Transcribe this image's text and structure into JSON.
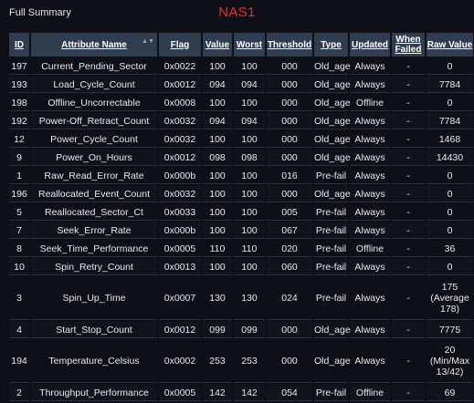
{
  "panel_label": "Full Summary",
  "title": "NAS1",
  "columns": [
    {
      "key": "id",
      "label": "ID"
    },
    {
      "key": "name",
      "label": "Attribute Name"
    },
    {
      "key": "flag",
      "label": "Flag"
    },
    {
      "key": "value",
      "label": "Value"
    },
    {
      "key": "worst",
      "label": "Worst"
    },
    {
      "key": "threshold",
      "label": "Threshold"
    },
    {
      "key": "type",
      "label": "Type"
    },
    {
      "key": "updated",
      "label": "Updated"
    },
    {
      "key": "when_failed",
      "label": "When Failed"
    },
    {
      "key": "raw",
      "label": "Raw Value"
    }
  ],
  "rows": [
    {
      "id": "197",
      "name": "Current_Pending_Sector",
      "flag": "0x0022",
      "value": "100",
      "worst": "100",
      "threshold": "000",
      "type": "Old_age",
      "updated": "Always",
      "when_failed": "-",
      "raw": "0"
    },
    {
      "id": "193",
      "name": "Load_Cycle_Count",
      "flag": "0x0012",
      "value": "094",
      "worst": "094",
      "threshold": "000",
      "type": "Old_age",
      "updated": "Always",
      "when_failed": "-",
      "raw": "7784"
    },
    {
      "id": "198",
      "name": "Offline_Uncorrectable",
      "flag": "0x0008",
      "value": "100",
      "worst": "100",
      "threshold": "000",
      "type": "Old_age",
      "updated": "Offline",
      "when_failed": "-",
      "raw": "0"
    },
    {
      "id": "192",
      "name": "Power-Off_Retract_Count",
      "flag": "0x0032",
      "value": "094",
      "worst": "094",
      "threshold": "000",
      "type": "Old_age",
      "updated": "Always",
      "when_failed": "-",
      "raw": "7784"
    },
    {
      "id": "12",
      "name": "Power_Cycle_Count",
      "flag": "0x0032",
      "value": "100",
      "worst": "100",
      "threshold": "000",
      "type": "Old_age",
      "updated": "Always",
      "when_failed": "-",
      "raw": "1468"
    },
    {
      "id": "9",
      "name": "Power_On_Hours",
      "flag": "0x0012",
      "value": "098",
      "worst": "098",
      "threshold": "000",
      "type": "Old_age",
      "updated": "Always",
      "when_failed": "-",
      "raw": "14430"
    },
    {
      "id": "1",
      "name": "Raw_Read_Error_Rate",
      "flag": "0x000b",
      "value": "100",
      "worst": "100",
      "threshold": "016",
      "type": "Pre-fail",
      "updated": "Always",
      "when_failed": "-",
      "raw": "0"
    },
    {
      "id": "196",
      "name": "Reallocated_Event_Count",
      "flag": "0x0032",
      "value": "100",
      "worst": "100",
      "threshold": "000",
      "type": "Old_age",
      "updated": "Always",
      "when_failed": "-",
      "raw": "0"
    },
    {
      "id": "5",
      "name": "Reallocated_Sector_Ct",
      "flag": "0x0033",
      "value": "100",
      "worst": "100",
      "threshold": "005",
      "type": "Pre-fail",
      "updated": "Always",
      "when_failed": "-",
      "raw": "0"
    },
    {
      "id": "7",
      "name": "Seek_Error_Rate",
      "flag": "0x000b",
      "value": "100",
      "worst": "100",
      "threshold": "067",
      "type": "Pre-fail",
      "updated": "Always",
      "when_failed": "-",
      "raw": "0"
    },
    {
      "id": "8",
      "name": "Seek_Time_Performance",
      "flag": "0x0005",
      "value": "110",
      "worst": "110",
      "threshold": "020",
      "type": "Pre-fail",
      "updated": "Offline",
      "when_failed": "-",
      "raw": "36"
    },
    {
      "id": "10",
      "name": "Spin_Retry_Count",
      "flag": "0x0013",
      "value": "100",
      "worst": "100",
      "threshold": "060",
      "type": "Pre-fail",
      "updated": "Always",
      "when_failed": "-",
      "raw": "0"
    },
    {
      "id": "3",
      "name": "Spin_Up_Time",
      "flag": "0x0007",
      "value": "130",
      "worst": "130",
      "threshold": "024",
      "type": "Pre-fail",
      "updated": "Always",
      "when_failed": "-",
      "raw": "175 (Average 178)",
      "tall": true
    },
    {
      "id": "4",
      "name": "Start_Stop_Count",
      "flag": "0x0012",
      "value": "099",
      "worst": "099",
      "threshold": "000",
      "type": "Old_age",
      "updated": "Always",
      "when_failed": "-",
      "raw": "7775"
    },
    {
      "id": "194",
      "name": "Temperature_Celsius",
      "flag": "0x0002",
      "value": "253",
      "worst": "253",
      "threshold": "000",
      "type": "Old_age",
      "updated": "Always",
      "when_failed": "-",
      "raw": "20 (Min/Max 13/42)",
      "tall": true
    },
    {
      "id": "2",
      "name": "Throughput_Performance",
      "flag": "0x0005",
      "value": "142",
      "worst": "142",
      "threshold": "054",
      "type": "Pre-fail",
      "updated": "Offline",
      "when_failed": "-",
      "raw": "69"
    }
  ]
}
